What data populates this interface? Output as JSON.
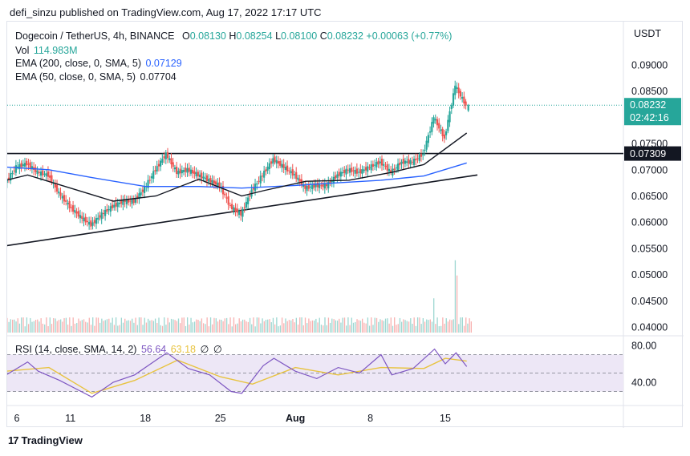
{
  "header": {
    "publisher": "defi_sinzu published on TradingView.com, Aug 17, 2022 17:17 UTC"
  },
  "legend": {
    "symbol": "Dogecoin / TetherUS, 4h, BINANCE",
    "o_label": "O",
    "o": "0.08130",
    "h_label": "H",
    "h": "0.08254",
    "l_label": "L",
    "l": "0.08100",
    "c_label": "C",
    "c": "0.08232",
    "change": "+0.00063 (+0.77%)",
    "vol_label": "Vol",
    "vol": "114.983M",
    "ema200_label": "EMA (200, close, 0, SMA, 5)",
    "ema200": "0.07129",
    "ema50_label": "EMA (50, close, 0, SMA, 5)",
    "ema50": "0.07704",
    "rsi_label": "RSI (14, close, SMA, 14, 2)",
    "rsi": "56.64",
    "rsi_ma": "63.18",
    "rsi_icons": [
      "no-value-icon",
      "no-value-icon"
    ]
  },
  "price_axis": {
    "currency": "USDT",
    "ticks": [
      "0.09000",
      "0.08500",
      "0.07500",
      "0.07000",
      "0.06500",
      "0.06000",
      "0.05500",
      "0.05000",
      "0.04500",
      "0.04000"
    ],
    "last_price": "0.08232",
    "countdown": "02:42:16",
    "level_label": "0.07309"
  },
  "rsi_axis": {
    "ticks": [
      "80.00",
      "40.00"
    ]
  },
  "time_axis": {
    "ticks": [
      "6",
      "11",
      "18",
      "25",
      "Aug",
      "8",
      "15"
    ]
  },
  "brand": {
    "name": "TradingView",
    "mark": "17"
  },
  "colors": {
    "up": "#26a69a",
    "down": "#ef5350",
    "ema200": "#2962ff",
    "ema50": "#131722",
    "rsi": "#7e57c2",
    "rsi_ma": "#e8c33f",
    "rsi_band": "#ede7f6",
    "last_price": "#26a69a"
  },
  "chart_data": {
    "type": "candlestick",
    "symbol": "Dogecoin / TetherUS",
    "interval": "4h",
    "exchange": "BINANCE",
    "x_tick_dates": [
      "Jul 6",
      "Jul 11",
      "Jul 18",
      "Jul 25",
      "Aug 1",
      "Aug 8",
      "Aug 15"
    ],
    "ylim": [
      0.0395,
      0.0965
    ],
    "close_path": [
      {
        "date": "2022-07-05",
        "close": 0.0675
      },
      {
        "date": "2022-07-06",
        "close": 0.0705
      },
      {
        "date": "2022-07-07",
        "close": 0.0712
      },
      {
        "date": "2022-07-08",
        "close": 0.0695
      },
      {
        "date": "2022-07-09",
        "close": 0.069
      },
      {
        "date": "2022-07-10",
        "close": 0.0655
      },
      {
        "date": "2022-07-11",
        "close": 0.063
      },
      {
        "date": "2022-07-12",
        "close": 0.061
      },
      {
        "date": "2022-07-13",
        "close": 0.0595
      },
      {
        "date": "2022-07-14",
        "close": 0.0615
      },
      {
        "date": "2022-07-15",
        "close": 0.063
      },
      {
        "date": "2022-07-16",
        "close": 0.064
      },
      {
        "date": "2022-07-17",
        "close": 0.064
      },
      {
        "date": "2022-07-18",
        "close": 0.0665
      },
      {
        "date": "2022-07-19",
        "close": 0.07
      },
      {
        "date": "2022-07-20",
        "close": 0.073
      },
      {
        "date": "2022-07-21",
        "close": 0.0695
      },
      {
        "date": "2022-07-22",
        "close": 0.07
      },
      {
        "date": "2022-07-23",
        "close": 0.069
      },
      {
        "date": "2022-07-24",
        "close": 0.068
      },
      {
        "date": "2022-07-25",
        "close": 0.067
      },
      {
        "date": "2022-07-26",
        "close": 0.063
      },
      {
        "date": "2022-07-27",
        "close": 0.0615
      },
      {
        "date": "2022-07-28",
        "close": 0.066
      },
      {
        "date": "2022-07-29",
        "close": 0.069
      },
      {
        "date": "2022-07-30",
        "close": 0.072
      },
      {
        "date": "2022-07-31",
        "close": 0.0705
      },
      {
        "date": "2022-08-01",
        "close": 0.069
      },
      {
        "date": "2022-08-02",
        "close": 0.0665
      },
      {
        "date": "2022-08-03",
        "close": 0.067
      },
      {
        "date": "2022-08-04",
        "close": 0.067
      },
      {
        "date": "2022-08-05",
        "close": 0.069
      },
      {
        "date": "2022-08-06",
        "close": 0.07
      },
      {
        "date": "2022-08-07",
        "close": 0.0695
      },
      {
        "date": "2022-08-08",
        "close": 0.0705
      },
      {
        "date": "2022-08-09",
        "close": 0.0715
      },
      {
        "date": "2022-08-10",
        "close": 0.0695
      },
      {
        "date": "2022-08-11",
        "close": 0.0715
      },
      {
        "date": "2022-08-12",
        "close": 0.0715
      },
      {
        "date": "2022-08-13",
        "close": 0.073
      },
      {
        "date": "2022-08-14",
        "close": 0.08
      },
      {
        "date": "2022-08-15",
        "close": 0.076
      },
      {
        "date": "2022-08-16",
        "close": 0.086
      },
      {
        "date": "2022-08-17",
        "close": 0.0823
      }
    ],
    "last_candle": {
      "open": 0.0813,
      "high": 0.08254,
      "low": 0.081,
      "close": 0.08232
    },
    "ema200_path": [
      {
        "date": "2022-07-05",
        "value": 0.0705
      },
      {
        "date": "2022-07-09",
        "value": 0.07
      },
      {
        "date": "2022-07-13",
        "value": 0.0685
      },
      {
        "date": "2022-07-18",
        "value": 0.0668
      },
      {
        "date": "2022-07-23",
        "value": 0.0668
      },
      {
        "date": "2022-07-27",
        "value": 0.0665
      },
      {
        "date": "2022-08-01",
        "value": 0.067
      },
      {
        "date": "2022-08-05",
        "value": 0.0675
      },
      {
        "date": "2022-08-09",
        "value": 0.068
      },
      {
        "date": "2022-08-13",
        "value": 0.0688
      },
      {
        "date": "2022-08-17",
        "value": 0.0713
      }
    ],
    "ema50_path": [
      {
        "date": "2022-07-05",
        "value": 0.068
      },
      {
        "date": "2022-07-07",
        "value": 0.069
      },
      {
        "date": "2022-07-11",
        "value": 0.0665
      },
      {
        "date": "2022-07-15",
        "value": 0.064
      },
      {
        "date": "2022-07-19",
        "value": 0.065
      },
      {
        "date": "2022-07-23",
        "value": 0.0682
      },
      {
        "date": "2022-07-27",
        "value": 0.065
      },
      {
        "date": "2022-07-29",
        "value": 0.066
      },
      {
        "date": "2022-08-02",
        "value": 0.0678
      },
      {
        "date": "2022-08-06",
        "value": 0.068
      },
      {
        "date": "2022-08-10",
        "value": 0.0695
      },
      {
        "date": "2022-08-13",
        "value": 0.071
      },
      {
        "date": "2022-08-17",
        "value": 0.077
      }
    ],
    "horizontal_level": 0.07309,
    "trendline": [
      {
        "date": "2022-07-05",
        "value": 0.0555
      },
      {
        "date": "2022-08-18",
        "value": 0.069
      }
    ],
    "volume_spikes": [
      {
        "date": "2022-08-14",
        "relative": 0.45
      },
      {
        "date": "2022-08-16",
        "relative": 0.95
      },
      {
        "date": "2022-08-16",
        "relative": 0.75
      }
    ],
    "rsi": {
      "ylim": [
        20,
        90
      ],
      "bands": [
        70,
        50,
        30
      ],
      "path": [
        {
          "date": "2022-07-05",
          "value": 48
        },
        {
          "date": "2022-07-07",
          "value": 62
        },
        {
          "date": "2022-07-08",
          "value": 52
        },
        {
          "date": "2022-07-10",
          "value": 42
        },
        {
          "date": "2022-07-12",
          "value": 30
        },
        {
          "date": "2022-07-13",
          "value": 24
        },
        {
          "date": "2022-07-15",
          "value": 40
        },
        {
          "date": "2022-07-17",
          "value": 48
        },
        {
          "date": "2022-07-19",
          "value": 64
        },
        {
          "date": "2022-07-20",
          "value": 72
        },
        {
          "date": "2022-07-22",
          "value": 55
        },
        {
          "date": "2022-07-24",
          "value": 48
        },
        {
          "date": "2022-07-26",
          "value": 30
        },
        {
          "date": "2022-07-27",
          "value": 28
        },
        {
          "date": "2022-07-29",
          "value": 58
        },
        {
          "date": "2022-07-30",
          "value": 66
        },
        {
          "date": "2022-08-01",
          "value": 52
        },
        {
          "date": "2022-08-03",
          "value": 44
        },
        {
          "date": "2022-08-05",
          "value": 56
        },
        {
          "date": "2022-08-07",
          "value": 50
        },
        {
          "date": "2022-08-09",
          "value": 70
        },
        {
          "date": "2022-08-10",
          "value": 48
        },
        {
          "date": "2022-08-12",
          "value": 55
        },
        {
          "date": "2022-08-14",
          "value": 76
        },
        {
          "date": "2022-08-15",
          "value": 60
        },
        {
          "date": "2022-08-16",
          "value": 72
        },
        {
          "date": "2022-08-17",
          "value": 57
        }
      ],
      "ma_path": [
        {
          "date": "2022-07-05",
          "value": 52
        },
        {
          "date": "2022-07-09",
          "value": 56
        },
        {
          "date": "2022-07-13",
          "value": 28
        },
        {
          "date": "2022-07-17",
          "value": 42
        },
        {
          "date": "2022-07-21",
          "value": 64
        },
        {
          "date": "2022-07-25",
          "value": 46
        },
        {
          "date": "2022-07-28",
          "value": 38
        },
        {
          "date": "2022-08-01",
          "value": 56
        },
        {
          "date": "2022-08-05",
          "value": 48
        },
        {
          "date": "2022-08-09",
          "value": 56
        },
        {
          "date": "2022-08-13",
          "value": 55
        },
        {
          "date": "2022-08-15",
          "value": 66
        },
        {
          "date": "2022-08-17",
          "value": 63
        }
      ]
    }
  }
}
